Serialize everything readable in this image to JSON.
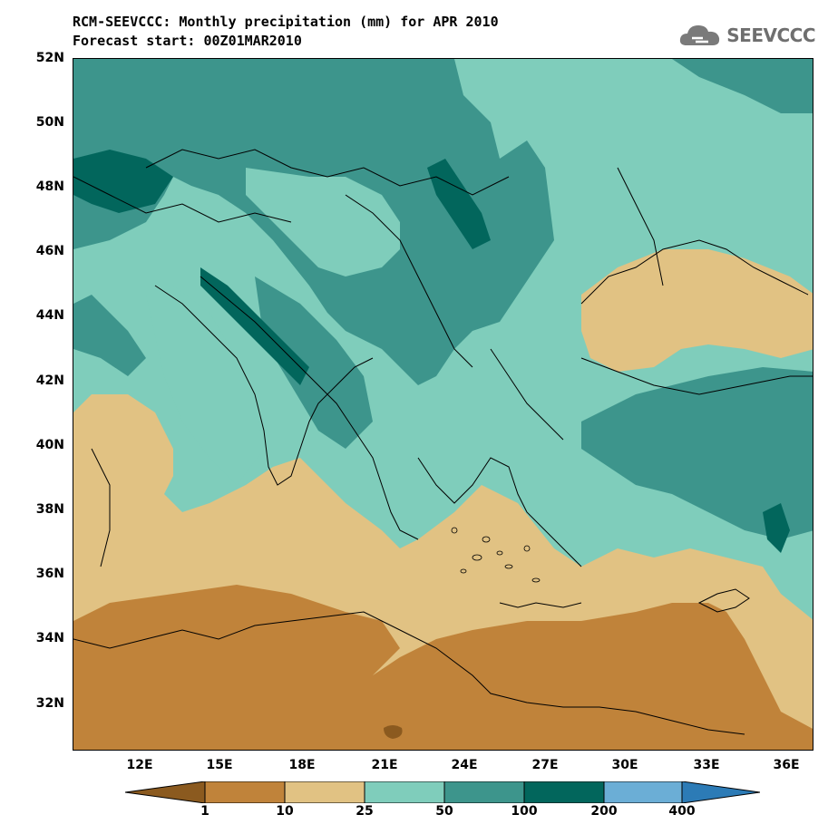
{
  "title": {
    "line1": "RCM-SEEVCCC: Monthly precipitation (mm) for APR 2010",
    "line2": "Forecast start: 00Z01MAR2010"
  },
  "logo": {
    "text": "SEEVCCC",
    "icon": "cloud-icon"
  },
  "axes": {
    "lat_labels": [
      "52N",
      "50N",
      "48N",
      "46N",
      "44N",
      "42N",
      "40N",
      "38N",
      "36N",
      "34N",
      "32N"
    ],
    "lon_labels": [
      "12E",
      "15E",
      "18E",
      "21E",
      "24E",
      "27E",
      "30E",
      "33E",
      "36E"
    ]
  },
  "legend": {
    "colors": [
      "#8b5a1f",
      "#c0833a",
      "#e1c283",
      "#7fcdbb",
      "#3d958c",
      "#02665c",
      "#6baed6",
      "#2c7bb6"
    ],
    "labels": [
      "1",
      "10",
      "25",
      "50",
      "100",
      "200",
      "400"
    ]
  }
}
